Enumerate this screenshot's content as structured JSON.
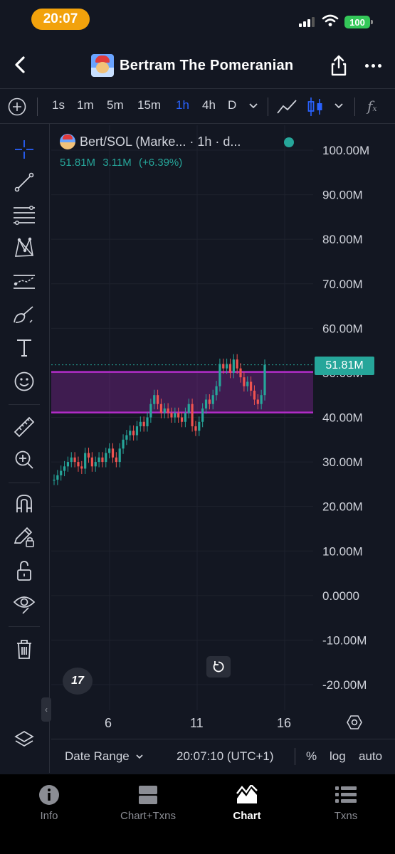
{
  "status": {
    "time": "20:07",
    "battery": "100"
  },
  "header": {
    "title": "Bertram The Pomeranian"
  },
  "toolbar": {
    "intervals": [
      "1s",
      "1m",
      "5m",
      "15m",
      "1h",
      "4h",
      "D"
    ],
    "active_interval": "1h"
  },
  "legend": {
    "symbol": "Bert/SOL (Marke... · 1h · d...",
    "last": "51.81M",
    "change": "3.11M",
    "change_pct": "(+6.39%)"
  },
  "price_axis": [
    "100.00M",
    "90.00M",
    "80.00M",
    "70.00M",
    "60.00M",
    "50.00M",
    "40.00M",
    "30.00M",
    "20.00M",
    "10.00M",
    "0.0000",
    "-10.00M",
    "-20.00M"
  ],
  "current_price_label": "51.81M",
  "time_axis": [
    "6",
    "11",
    "16"
  ],
  "rangebar": {
    "date_range": "Date Range",
    "clock": "20:07:10 (UTC+1)",
    "percent": "%",
    "log": "log",
    "auto": "auto"
  },
  "tabs": [
    {
      "label": "Info",
      "icon": "info-icon"
    },
    {
      "label": "Chart+Txns",
      "icon": "chart-txns-icon"
    },
    {
      "label": "Chart",
      "icon": "chart-icon",
      "active": true
    },
    {
      "label": "Txns",
      "icon": "list-icon"
    }
  ],
  "colors": {
    "up": "#26a69a",
    "down": "#ef5350",
    "zone": "#b22cc8",
    "accent": "#2962ff"
  },
  "chart_data": {
    "type": "candlestick",
    "title": "Bert/SOL (Marke... · 1h · d...",
    "ylim": [
      -20,
      100
    ],
    "yunit": "M",
    "x_ticks": [
      "6",
      "11",
      "16"
    ],
    "last_price": 51.81,
    "zone": {
      "upper": 50.2,
      "lower": 41.1
    },
    "series": [
      {
        "name": "price",
        "values": [
          26,
          27,
          28,
          29,
          30,
          31,
          30,
          29,
          28.5,
          32,
          31,
          29,
          30,
          31,
          30,
          32,
          33,
          31,
          30,
          33,
          35,
          36,
          37,
          36,
          38,
          39,
          38,
          40,
          43,
          45,
          43,
          41,
          42,
          41,
          40,
          41,
          40,
          39,
          41,
          43,
          38,
          37,
          39,
          42,
          44,
          43,
          45,
          47,
          52,
          51,
          52,
          50,
          53,
          51,
          49,
          47,
          48,
          46,
          44,
          43,
          45,
          51.81
        ]
      }
    ]
  }
}
